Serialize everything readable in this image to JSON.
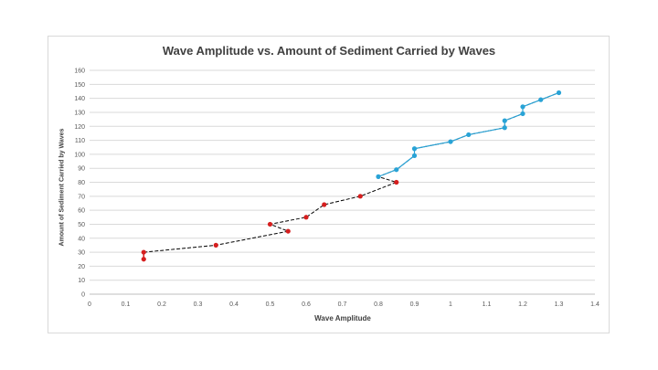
{
  "chart_data": {
    "type": "scatter",
    "title": "Wave Amplitude vs. Amount of Sediment Carried by Waves",
    "xlabel": "Wave Amplitude",
    "ylabel": "Amount of Sediment Carried by Waves",
    "xlim": [
      0,
      1.4
    ],
    "ylim": [
      0,
      160
    ],
    "xticks": [
      "0",
      "0.1",
      "0.2",
      "0.3",
      "0.4",
      "0.5",
      "0.6",
      "0.7",
      "0.8",
      "0.9",
      "1",
      "1.1",
      "1.2",
      "1.3",
      "1.4"
    ],
    "yticks": [
      "0",
      "10",
      "20",
      "30",
      "40",
      "50",
      "60",
      "70",
      "80",
      "90",
      "100",
      "110",
      "120",
      "130",
      "140",
      "150",
      "160"
    ],
    "grid": true,
    "series": [
      {
        "name": "red",
        "color": "#d61f1f",
        "points": [
          [
            0.15,
            25
          ],
          [
            0.15,
            30
          ],
          [
            0.35,
            35
          ],
          [
            0.55,
            45
          ],
          [
            0.5,
            50
          ],
          [
            0.6,
            55
          ],
          [
            0.65,
            64
          ],
          [
            0.75,
            70
          ],
          [
            0.85,
            80
          ]
        ]
      },
      {
        "name": "blue",
        "color": "#29a3d6",
        "points": [
          [
            0.8,
            84
          ],
          [
            0.85,
            89
          ],
          [
            0.9,
            99
          ],
          [
            0.9,
            104
          ],
          [
            1.0,
            109
          ],
          [
            1.05,
            114
          ],
          [
            1.15,
            119
          ],
          [
            1.15,
            124
          ],
          [
            1.2,
            129
          ],
          [
            1.2,
            134
          ],
          [
            1.25,
            139
          ],
          [
            1.3,
            144
          ]
        ]
      }
    ],
    "trend_line": [
      [
        0.15,
        30
      ],
      [
        0.35,
        35
      ],
      [
        0.55,
        45
      ],
      [
        0.5,
        50
      ],
      [
        0.6,
        55
      ],
      [
        0.65,
        64
      ],
      [
        0.75,
        70
      ],
      [
        0.85,
        80
      ],
      [
        0.8,
        84
      ],
      [
        0.85,
        89
      ],
      [
        0.9,
        99
      ],
      [
        0.9,
        104
      ],
      [
        1.0,
        109
      ],
      [
        1.05,
        114
      ],
      [
        1.15,
        119
      ],
      [
        1.15,
        124
      ],
      [
        1.2,
        129
      ],
      [
        1.2,
        134
      ],
      [
        1.25,
        139
      ],
      [
        1.3,
        144
      ]
    ],
    "trend_color": "#000000"
  }
}
